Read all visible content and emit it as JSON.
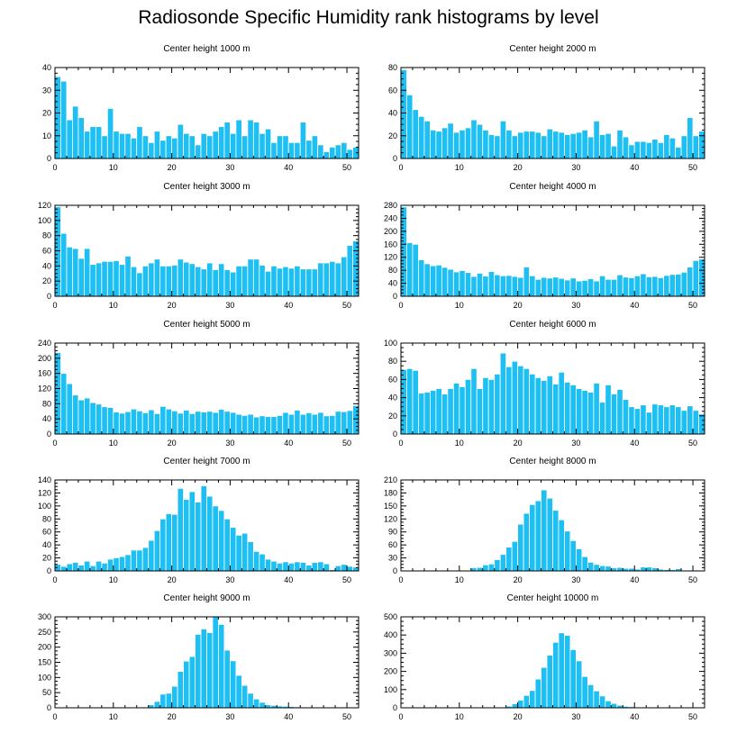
{
  "title": "Radiosonde Specific Humidity rank histograms by level",
  "colors": {
    "bar": "#1ec0f4",
    "bar_edge": "#ffffff",
    "axis": "#000000"
  },
  "chart_data": [
    {
      "type": "bar",
      "title": "Center height 1000 m",
      "xlim": [
        0,
        52
      ],
      "ylim": [
        0,
        40
      ],
      "xticks": [
        0,
        10,
        20,
        30,
        40,
        50
      ],
      "yticks": [
        0,
        10,
        20,
        30,
        40
      ],
      "values": [
        36,
        34,
        17,
        23,
        18,
        12,
        14,
        14,
        10,
        22,
        12,
        11,
        11,
        9,
        14,
        10,
        7,
        12,
        8,
        10,
        9,
        15,
        11,
        10,
        6,
        11,
        10,
        12,
        14,
        16,
        11,
        17,
        10,
        17,
        16,
        11,
        13,
        7,
        10,
        10,
        7,
        7,
        16,
        8,
        10,
        6,
        3,
        5,
        6,
        7,
        4,
        5
      ]
    },
    {
      "type": "bar",
      "title": "Center height 2000 m",
      "xlim": [
        0,
        52
      ],
      "ylim": [
        0,
        80
      ],
      "xticks": [
        0,
        10,
        20,
        30,
        40,
        50
      ],
      "yticks": [
        0,
        20,
        40,
        60,
        80
      ],
      "values": [
        78,
        56,
        43,
        37,
        33,
        25,
        24,
        27,
        31,
        23,
        25,
        27,
        34,
        30,
        25,
        21,
        20,
        33,
        25,
        20,
        23,
        24,
        24,
        23,
        20,
        26,
        24,
        23,
        21,
        22,
        23,
        25,
        19,
        33,
        21,
        22,
        11,
        25,
        19,
        12,
        15,
        15,
        14,
        17,
        14,
        21,
        18,
        10,
        20,
        36,
        20,
        24
      ]
    },
    {
      "type": "bar",
      "title": "Center height 3000 m",
      "xlim": [
        0,
        52
      ],
      "ylim": [
        0,
        120
      ],
      "xticks": [
        0,
        10,
        20,
        30,
        40,
        50
      ],
      "yticks": [
        0,
        20,
        40,
        60,
        80,
        100,
        120
      ],
      "values": [
        118,
        83,
        65,
        63,
        50,
        63,
        42,
        44,
        46,
        46,
        47,
        42,
        53,
        39,
        31,
        40,
        44,
        49,
        40,
        40,
        41,
        49,
        45,
        43,
        39,
        36,
        44,
        35,
        43,
        35,
        32,
        40,
        40,
        49,
        49,
        41,
        33,
        40,
        37,
        39,
        37,
        40,
        36,
        36,
        36,
        44,
        44,
        46,
        44,
        52,
        67,
        73
      ]
    },
    {
      "type": "bar",
      "title": "Center height 4000 m",
      "xlim": [
        0,
        52
      ],
      "ylim": [
        0,
        280
      ],
      "xticks": [
        0,
        10,
        20,
        30,
        40,
        50
      ],
      "yticks": [
        0,
        40,
        80,
        120,
        160,
        200,
        240,
        280
      ],
      "values": [
        275,
        165,
        160,
        112,
        100,
        94,
        96,
        89,
        83,
        75,
        79,
        73,
        61,
        71,
        62,
        76,
        66,
        63,
        64,
        61,
        58,
        90,
        63,
        52,
        58,
        56,
        59,
        55,
        50,
        56,
        47,
        49,
        54,
        47,
        63,
        52,
        52,
        66,
        59,
        57,
        63,
        69,
        60,
        61,
        57,
        64,
        67,
        68,
        74,
        90,
        110,
        115
      ]
    },
    {
      "type": "bar",
      "title": "Center height 5000 m",
      "xlim": [
        0,
        52
      ],
      "ylim": [
        0,
        240
      ],
      "xticks": [
        0,
        10,
        20,
        30,
        40,
        50
      ],
      "yticks": [
        0,
        40,
        80,
        120,
        160,
        200,
        240
      ],
      "values": [
        215,
        160,
        133,
        103,
        90,
        95,
        83,
        79,
        72,
        70,
        58,
        55,
        59,
        66,
        61,
        56,
        64,
        54,
        73,
        66,
        61,
        55,
        63,
        54,
        60,
        58,
        60,
        57,
        65,
        60,
        57,
        52,
        49,
        52,
        45,
        48,
        46,
        46,
        49,
        57,
        52,
        63,
        52,
        56,
        52,
        57,
        48,
        49,
        60,
        59,
        62,
        75
      ]
    },
    {
      "type": "bar",
      "title": "Center height 6000 m",
      "xlim": [
        0,
        52
      ],
      "ylim": [
        0,
        100
      ],
      "xticks": [
        0,
        10,
        20,
        30,
        40,
        50
      ],
      "yticks": [
        0,
        20,
        40,
        60,
        80,
        100
      ],
      "values": [
        71,
        72,
        70,
        45,
        46,
        48,
        50,
        44,
        50,
        56,
        52,
        60,
        72,
        50,
        62,
        60,
        66,
        89,
        74,
        80,
        75,
        72,
        66,
        62,
        59,
        64,
        55,
        68,
        57,
        54,
        50,
        48,
        46,
        56,
        35,
        54,
        44,
        49,
        38,
        30,
        28,
        32,
        24,
        33,
        32,
        30,
        32,
        30,
        26,
        31,
        26,
        22
      ]
    },
    {
      "type": "bar",
      "title": "Center height 7000 m",
      "xlim": [
        0,
        52
      ],
      "ylim": [
        0,
        140
      ],
      "xticks": [
        0,
        10,
        20,
        30,
        40,
        50
      ],
      "yticks": [
        0,
        20,
        40,
        60,
        80,
        100,
        120,
        140
      ],
      "values": [
        10,
        7,
        11,
        13,
        9,
        15,
        8,
        15,
        12,
        18,
        20,
        22,
        25,
        32,
        32,
        36,
        47,
        62,
        80,
        88,
        87,
        127,
        110,
        122,
        106,
        131,
        115,
        100,
        93,
        80,
        67,
        55,
        58,
        45,
        30,
        26,
        18,
        15,
        12,
        14,
        12,
        14,
        13,
        9,
        13,
        14,
        11,
        2,
        8,
        10,
        7,
        6
      ]
    },
    {
      "type": "bar",
      "title": "Center height 8000 m",
      "xlim": [
        0,
        52
      ],
      "ylim": [
        0,
        210
      ],
      "xticks": [
        0,
        10,
        20,
        30,
        40,
        50
      ],
      "yticks": [
        0,
        30,
        60,
        90,
        120,
        150,
        180,
        210
      ],
      "values": [
        0,
        0,
        0,
        0,
        0,
        0,
        0,
        0,
        0,
        0,
        0,
        0,
        7,
        8,
        14,
        16,
        26,
        38,
        55,
        68,
        108,
        133,
        153,
        162,
        187,
        168,
        140,
        118,
        92,
        70,
        51,
        33,
        20,
        15,
        12,
        11,
        7,
        8,
        6,
        6,
        4,
        9,
        9,
        7,
        4,
        3,
        3,
        5,
        1,
        1,
        2,
        0
      ]
    },
    {
      "type": "bar",
      "title": "Center height 9000 m",
      "xlim": [
        0,
        52
      ],
      "ylim": [
        0,
        300
      ],
      "xticks": [
        0,
        10,
        20,
        30,
        40,
        50
      ],
      "yticks": [
        0,
        50,
        100,
        150,
        200,
        250,
        300
      ],
      "values": [
        0,
        0,
        0,
        0,
        0,
        0,
        0,
        0,
        0,
        0,
        0,
        0,
        0,
        0,
        0,
        2,
        10,
        21,
        45,
        48,
        71,
        120,
        154,
        169,
        242,
        260,
        248,
        300,
        275,
        190,
        155,
        107,
        74,
        48,
        29,
        18,
        10,
        8,
        6,
        5,
        4,
        3,
        1,
        0,
        0,
        0,
        0,
        0,
        0,
        0,
        0,
        0
      ]
    },
    {
      "type": "bar",
      "title": "Center height 10000 m",
      "xlim": [
        0,
        52
      ],
      "ylim": [
        0,
        500
      ],
      "xticks": [
        0,
        10,
        20,
        30,
        40,
        50
      ],
      "yticks": [
        0,
        100,
        200,
        300,
        400,
        500
      ],
      "values": [
        0,
        0,
        0,
        0,
        0,
        0,
        0,
        0,
        0,
        0,
        0,
        0,
        0,
        0,
        0,
        0,
        0,
        3,
        9,
        22,
        42,
        68,
        95,
        158,
        222,
        289,
        360,
        412,
        398,
        320,
        258,
        172,
        127,
        93,
        65,
        38,
        24,
        14,
        8,
        6,
        4,
        2,
        1,
        0,
        0,
        0,
        0,
        0,
        0,
        0,
        0,
        0
      ]
    }
  ]
}
